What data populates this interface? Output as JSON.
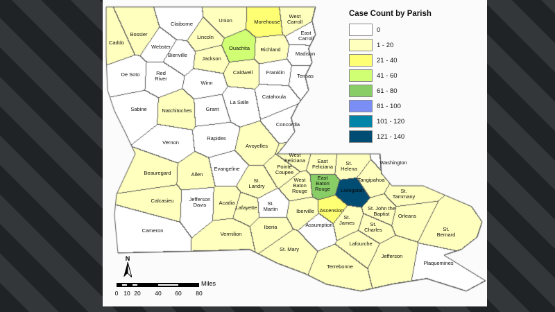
{
  "legend": {
    "title": "Case Count by Parish",
    "classes": [
      {
        "label": "0",
        "color": "#ffffff"
      },
      {
        "label": "1 - 20",
        "color": "#ffffbe"
      },
      {
        "label": "21 - 40",
        "color": "#ffff73"
      },
      {
        "label": "41 - 60",
        "color": "#d1ff73"
      },
      {
        "label": "61 - 80",
        "color": "#89cd66"
      },
      {
        "label": "81 - 100",
        "color": "#7a8ef5"
      },
      {
        "label": "101 - 120",
        "color": "#0084a8"
      },
      {
        "label": "121 - 140",
        "color": "#004c73"
      }
    ]
  },
  "parishes": [
    {
      "name": "Caddo",
      "class": 1
    },
    {
      "name": "Bossier",
      "class": 1
    },
    {
      "name": "Claiborne",
      "class": 0
    },
    {
      "name": "Union",
      "class": 1
    },
    {
      "name": "Morehouse",
      "class": 2
    },
    {
      "name": "West\nCarroll",
      "class": 1
    },
    {
      "name": "East\nCarroll",
      "class": 0
    },
    {
      "name": "Webster",
      "class": 0
    },
    {
      "name": "Lincoln",
      "class": 1
    },
    {
      "name": "Ouachita",
      "class": 3
    },
    {
      "name": "Richland",
      "class": 1
    },
    {
      "name": "Madison",
      "class": 0
    },
    {
      "name": "Bienville",
      "class": 0
    },
    {
      "name": "Jackson",
      "class": 1
    },
    {
      "name": "Caldwell",
      "class": 1
    },
    {
      "name": "Franklin",
      "class": 0
    },
    {
      "name": "Tensas",
      "class": 0
    },
    {
      "name": "De Soto",
      "class": 0
    },
    {
      "name": "Red\nRiver",
      "class": 0
    },
    {
      "name": "Winn",
      "class": 0
    },
    {
      "name": "La Salle",
      "class": 0
    },
    {
      "name": "Catahoula",
      "class": 0
    },
    {
      "name": "Concordia",
      "class": 0
    },
    {
      "name": "Sabine",
      "class": 0
    },
    {
      "name": "Natchitoches",
      "class": 1
    },
    {
      "name": "Grant",
      "class": 0
    },
    {
      "name": "Vernon",
      "class": 0
    },
    {
      "name": "Rapides",
      "class": 0
    },
    {
      "name": "Avoyelles",
      "class": 1
    },
    {
      "name": "Beauregard",
      "class": 1
    },
    {
      "name": "Allen",
      "class": 1
    },
    {
      "name": "Evangeline",
      "class": 0
    },
    {
      "name": "St.\nLandry",
      "class": 1
    },
    {
      "name": "Pointe\nCoupee",
      "class": 1
    },
    {
      "name": "West\nFeliciana",
      "class": 1
    },
    {
      "name": "East\nFeliciana",
      "class": 1
    },
    {
      "name": "St.\nHelena",
      "class": 1
    },
    {
      "name": "Tangipahoa",
      "class": 1
    },
    {
      "name": "Washington",
      "class": 0
    },
    {
      "name": "Calcasieu",
      "class": 1
    },
    {
      "name": "Jefferson\nDavis",
      "class": 0
    },
    {
      "name": "Acadia",
      "class": 1
    },
    {
      "name": "Lafayette",
      "class": 1
    },
    {
      "name": "St.\nMartin",
      "class": 0
    },
    {
      "name": "Iberville",
      "class": 1
    },
    {
      "name": "West\nBaton\nRouge",
      "class": 1
    },
    {
      "name": "East\nBaton\nRouge",
      "class": 4
    },
    {
      "name": "Livingston",
      "class": 7
    },
    {
      "name": "Ascension",
      "class": 2
    },
    {
      "name": "St.\nTammany",
      "class": 1
    },
    {
      "name": "St. John the\nBaptist",
      "class": 1
    },
    {
      "name": "St.\nJames",
      "class": 1
    },
    {
      "name": "Assumption",
      "class": 0
    },
    {
      "name": "Orleans",
      "class": 1
    },
    {
      "name": "St.\nCharles",
      "class": 1
    },
    {
      "name": "Cameron",
      "class": 0
    },
    {
      "name": "Vermilion",
      "class": 1
    },
    {
      "name": "Iberia",
      "class": 1
    },
    {
      "name": "St.\nBernard",
      "class": 1
    },
    {
      "name": "St. Mary",
      "class": 1
    },
    {
      "name": "Lafourche",
      "class": 1
    },
    {
      "name": "Jefferson",
      "class": 1
    },
    {
      "name": "Terrebonne",
      "class": 1
    },
    {
      "name": "Plaquemines",
      "class": 0
    }
  ],
  "north_arrow": "N",
  "scale_bar": {
    "unit": "Miles",
    "ticks": [
      "0",
      "10",
      "20",
      "40",
      "60",
      "80"
    ]
  }
}
